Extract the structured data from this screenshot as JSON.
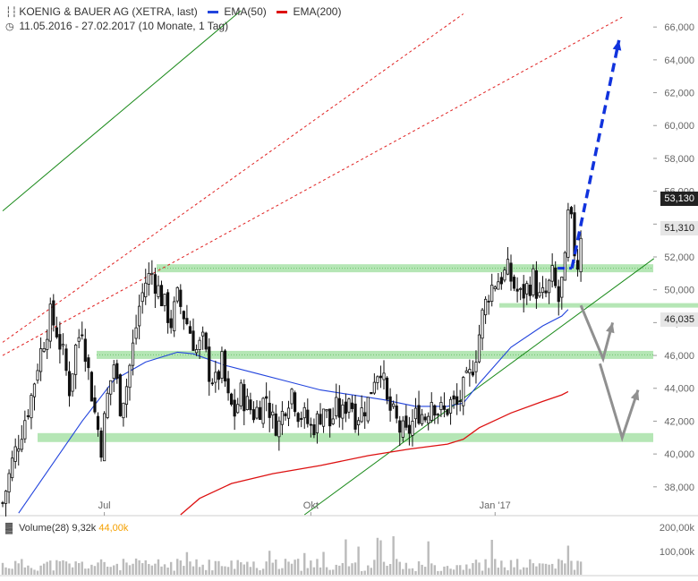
{
  "header": {
    "title": "KOENIG & BAUER AG (XETRA, last)",
    "range": "11.05.2016 - 27.02.2017",
    "period": "(10 Monate, 1 Tag)",
    "ema50_label": "EMA(50)",
    "ema200_label": "EMA(200)"
  },
  "volume": {
    "label": "Volume(28)",
    "last": "9,32k",
    "avg": "44,00k",
    "ticks": [
      "200,00k",
      "100,00k"
    ]
  },
  "badges": {
    "last_price": "53,130",
    "resistance": "51,310",
    "support": "46,035"
  },
  "colors": {
    "candle": "#111111",
    "ema50": "#2244dd",
    "ema200": "#dd1111",
    "zone": "#a8e2a8",
    "trend_green": "#1a8a1a",
    "channel_red": "#e02020",
    "arrow_blue": "#1133dd",
    "arrow_grey": "#909090"
  },
  "chart_data": {
    "type": "candlestick",
    "title": "KOENIG & BAUER AG (XETRA, last)",
    "x_tick_labels": [
      "Jul",
      "Okt",
      "Jan '17"
    ],
    "y_tick_labels": [
      "38,000",
      "40,000",
      "42,000",
      "44,000",
      "46,000",
      "48,000",
      "50,000",
      "52,000",
      "54,000",
      "56,000",
      "58,000",
      "60,000",
      "62,000",
      "64,000",
      "66,000"
    ],
    "ylim": [
      36.3,
      66.8
    ],
    "y_axis_side": "right",
    "grid": false,
    "last_close": 53.13,
    "horizontal_zones": [
      {
        "level": 51.31,
        "label": "51,310"
      },
      {
        "level": 46.035
      },
      {
        "level": 41.0
      },
      {
        "level": 49.05
      }
    ],
    "price_path": [
      [
        0,
        37.0
      ],
      [
        3,
        39.5
      ],
      [
        6,
        41.5
      ],
      [
        9,
        43.5
      ],
      [
        11,
        45.5
      ],
      [
        13,
        47.0
      ],
      [
        15,
        48.4
      ],
      [
        17,
        47.5
      ],
      [
        19,
        46.0
      ],
      [
        21,
        44.0
      ],
      [
        23,
        46.5
      ],
      [
        25,
        47.8
      ],
      [
        27,
        45.0
      ],
      [
        29,
        42.5
      ],
      [
        31,
        40.5
      ],
      [
        33,
        43.5
      ],
      [
        35,
        45.5
      ],
      [
        37,
        43.0
      ],
      [
        39,
        44.2
      ],
      [
        41,
        46.5
      ],
      [
        43,
        49.0
      ],
      [
        45,
        50.5
      ],
      [
        47,
        51.0
      ],
      [
        49,
        50.0
      ],
      [
        51,
        49.0
      ],
      [
        53,
        48.0
      ],
      [
        55,
        49.5
      ],
      [
        57,
        48.5
      ],
      [
        59,
        47.5
      ],
      [
        61,
        46.3
      ],
      [
        63,
        46.8
      ],
      [
        65,
        45.0
      ],
      [
        67,
        44.3
      ],
      [
        69,
        45.5
      ],
      [
        71,
        43.2
      ],
      [
        73,
        42.5
      ],
      [
        75,
        43.7
      ],
      [
        77,
        43.0
      ],
      [
        79,
        42.5
      ],
      [
        81,
        42.9
      ],
      [
        83,
        43.5
      ],
      [
        85,
        42.0
      ],
      [
        87,
        41.8
      ],
      [
        89,
        43.1
      ],
      [
        91,
        43.9
      ],
      [
        93,
        42.6
      ],
      [
        95,
        42.2
      ],
      [
        97,
        41.6
      ],
      [
        99,
        42.0
      ],
      [
        101,
        42.9
      ],
      [
        103,
        41.8
      ],
      [
        105,
        42.7
      ],
      [
        107,
        42.4
      ],
      [
        109,
        43.6
      ],
      [
        111,
        42.3
      ],
      [
        113,
        42.6
      ],
      [
        115,
        43.2
      ],
      [
        117,
        44.8
      ],
      [
        119,
        45.4
      ],
      [
        121,
        43.0
      ],
      [
        123,
        42.3
      ],
      [
        125,
        41.5
      ],
      [
        127,
        41.1
      ],
      [
        129,
        41.9
      ],
      [
        131,
        42.6
      ],
      [
        133,
        42.3
      ],
      [
        135,
        43.4
      ],
      [
        137,
        42.7
      ],
      [
        139,
        42.5
      ],
      [
        141,
        43.1
      ],
      [
        143,
        42.9
      ],
      [
        145,
        43.9
      ],
      [
        147,
        44.7
      ],
      [
        149,
        46.2
      ],
      [
        151,
        48.4
      ],
      [
        153,
        49.9
      ],
      [
        155,
        50.5
      ],
      [
        157,
        50.8
      ],
      [
        159,
        51.1
      ],
      [
        161,
        50.2
      ],
      [
        163,
        49.6
      ],
      [
        165,
        50.1
      ],
      [
        167,
        50.7
      ],
      [
        169,
        49.4
      ],
      [
        171,
        49.7
      ],
      [
        173,
        50.8
      ],
      [
        175,
        49.3
      ],
      [
        177,
        51.5
      ],
      [
        178,
        54.4
      ],
      [
        179,
        53.9
      ],
      [
        180,
        52.4
      ],
      [
        181,
        51.6
      ],
      [
        182,
        53.13
      ]
    ],
    "ema50": [
      [
        5,
        36.4
      ],
      [
        15,
        39.2
      ],
      [
        25,
        42.0
      ],
      [
        35,
        44.5
      ],
      [
        45,
        45.6
      ],
      [
        55,
        46.2
      ],
      [
        60,
        46.1
      ],
      [
        70,
        45.4
      ],
      [
        80,
        44.9
      ],
      [
        90,
        44.4
      ],
      [
        100,
        43.9
      ],
      [
        110,
        43.6
      ],
      [
        120,
        43.3
      ],
      [
        130,
        42.9
      ],
      [
        140,
        42.9
      ],
      [
        145,
        43.1
      ],
      [
        150,
        44.3
      ],
      [
        160,
        46.5
      ],
      [
        170,
        47.8
      ],
      [
        176,
        48.4
      ],
      [
        178,
        48.8
      ]
    ],
    "ema200": [
      [
        56,
        36.3
      ],
      [
        62,
        37.3
      ],
      [
        72,
        38.2
      ],
      [
        85,
        38.8
      ],
      [
        100,
        39.3
      ],
      [
        115,
        39.9
      ],
      [
        128,
        40.3
      ],
      [
        140,
        40.6
      ],
      [
        145,
        40.9
      ],
      [
        150,
        41.6
      ],
      [
        160,
        42.5
      ],
      [
        170,
        43.2
      ],
      [
        176,
        43.6
      ],
      [
        178,
        43.8
      ]
    ],
    "annotations": [
      {
        "type": "line",
        "role": "long-term trend line",
        "color": "green",
        "from": [
          0,
          54.8
        ],
        "to": [
          75,
          67.0
        ]
      },
      {
        "type": "line",
        "role": "trend line",
        "color": "green",
        "from": [
          95,
          36.3
        ],
        "to": [
          205,
          51.9
        ]
      },
      {
        "type": "dashed-line",
        "role": "channel line",
        "color": "red",
        "from": [
          0,
          46.8
        ],
        "to": [
          145,
          66.8
        ]
      },
      {
        "type": "dashed-line",
        "role": "channel line",
        "color": "red",
        "from": [
          0,
          46.0
        ],
        "to": [
          195,
          66.6
        ]
      },
      {
        "type": "arrow",
        "style": "dashed",
        "color": "blue",
        "from": [
          182,
          51.31
        ],
        "to": [
          194,
          65.2
        ]
      },
      {
        "type": "arrow",
        "style": "solid",
        "color": "grey",
        "from": [
          182,
          49.05
        ],
        "to": [
          189,
          45.8
        ],
        "then": [
          192,
          48.0
        ]
      },
      {
        "type": "arrow",
        "style": "solid",
        "color": "grey",
        "from": [
          188,
          45.5
        ],
        "to": [
          195,
          41.0
        ],
        "then": [
          200,
          43.9
        ]
      }
    ]
  }
}
